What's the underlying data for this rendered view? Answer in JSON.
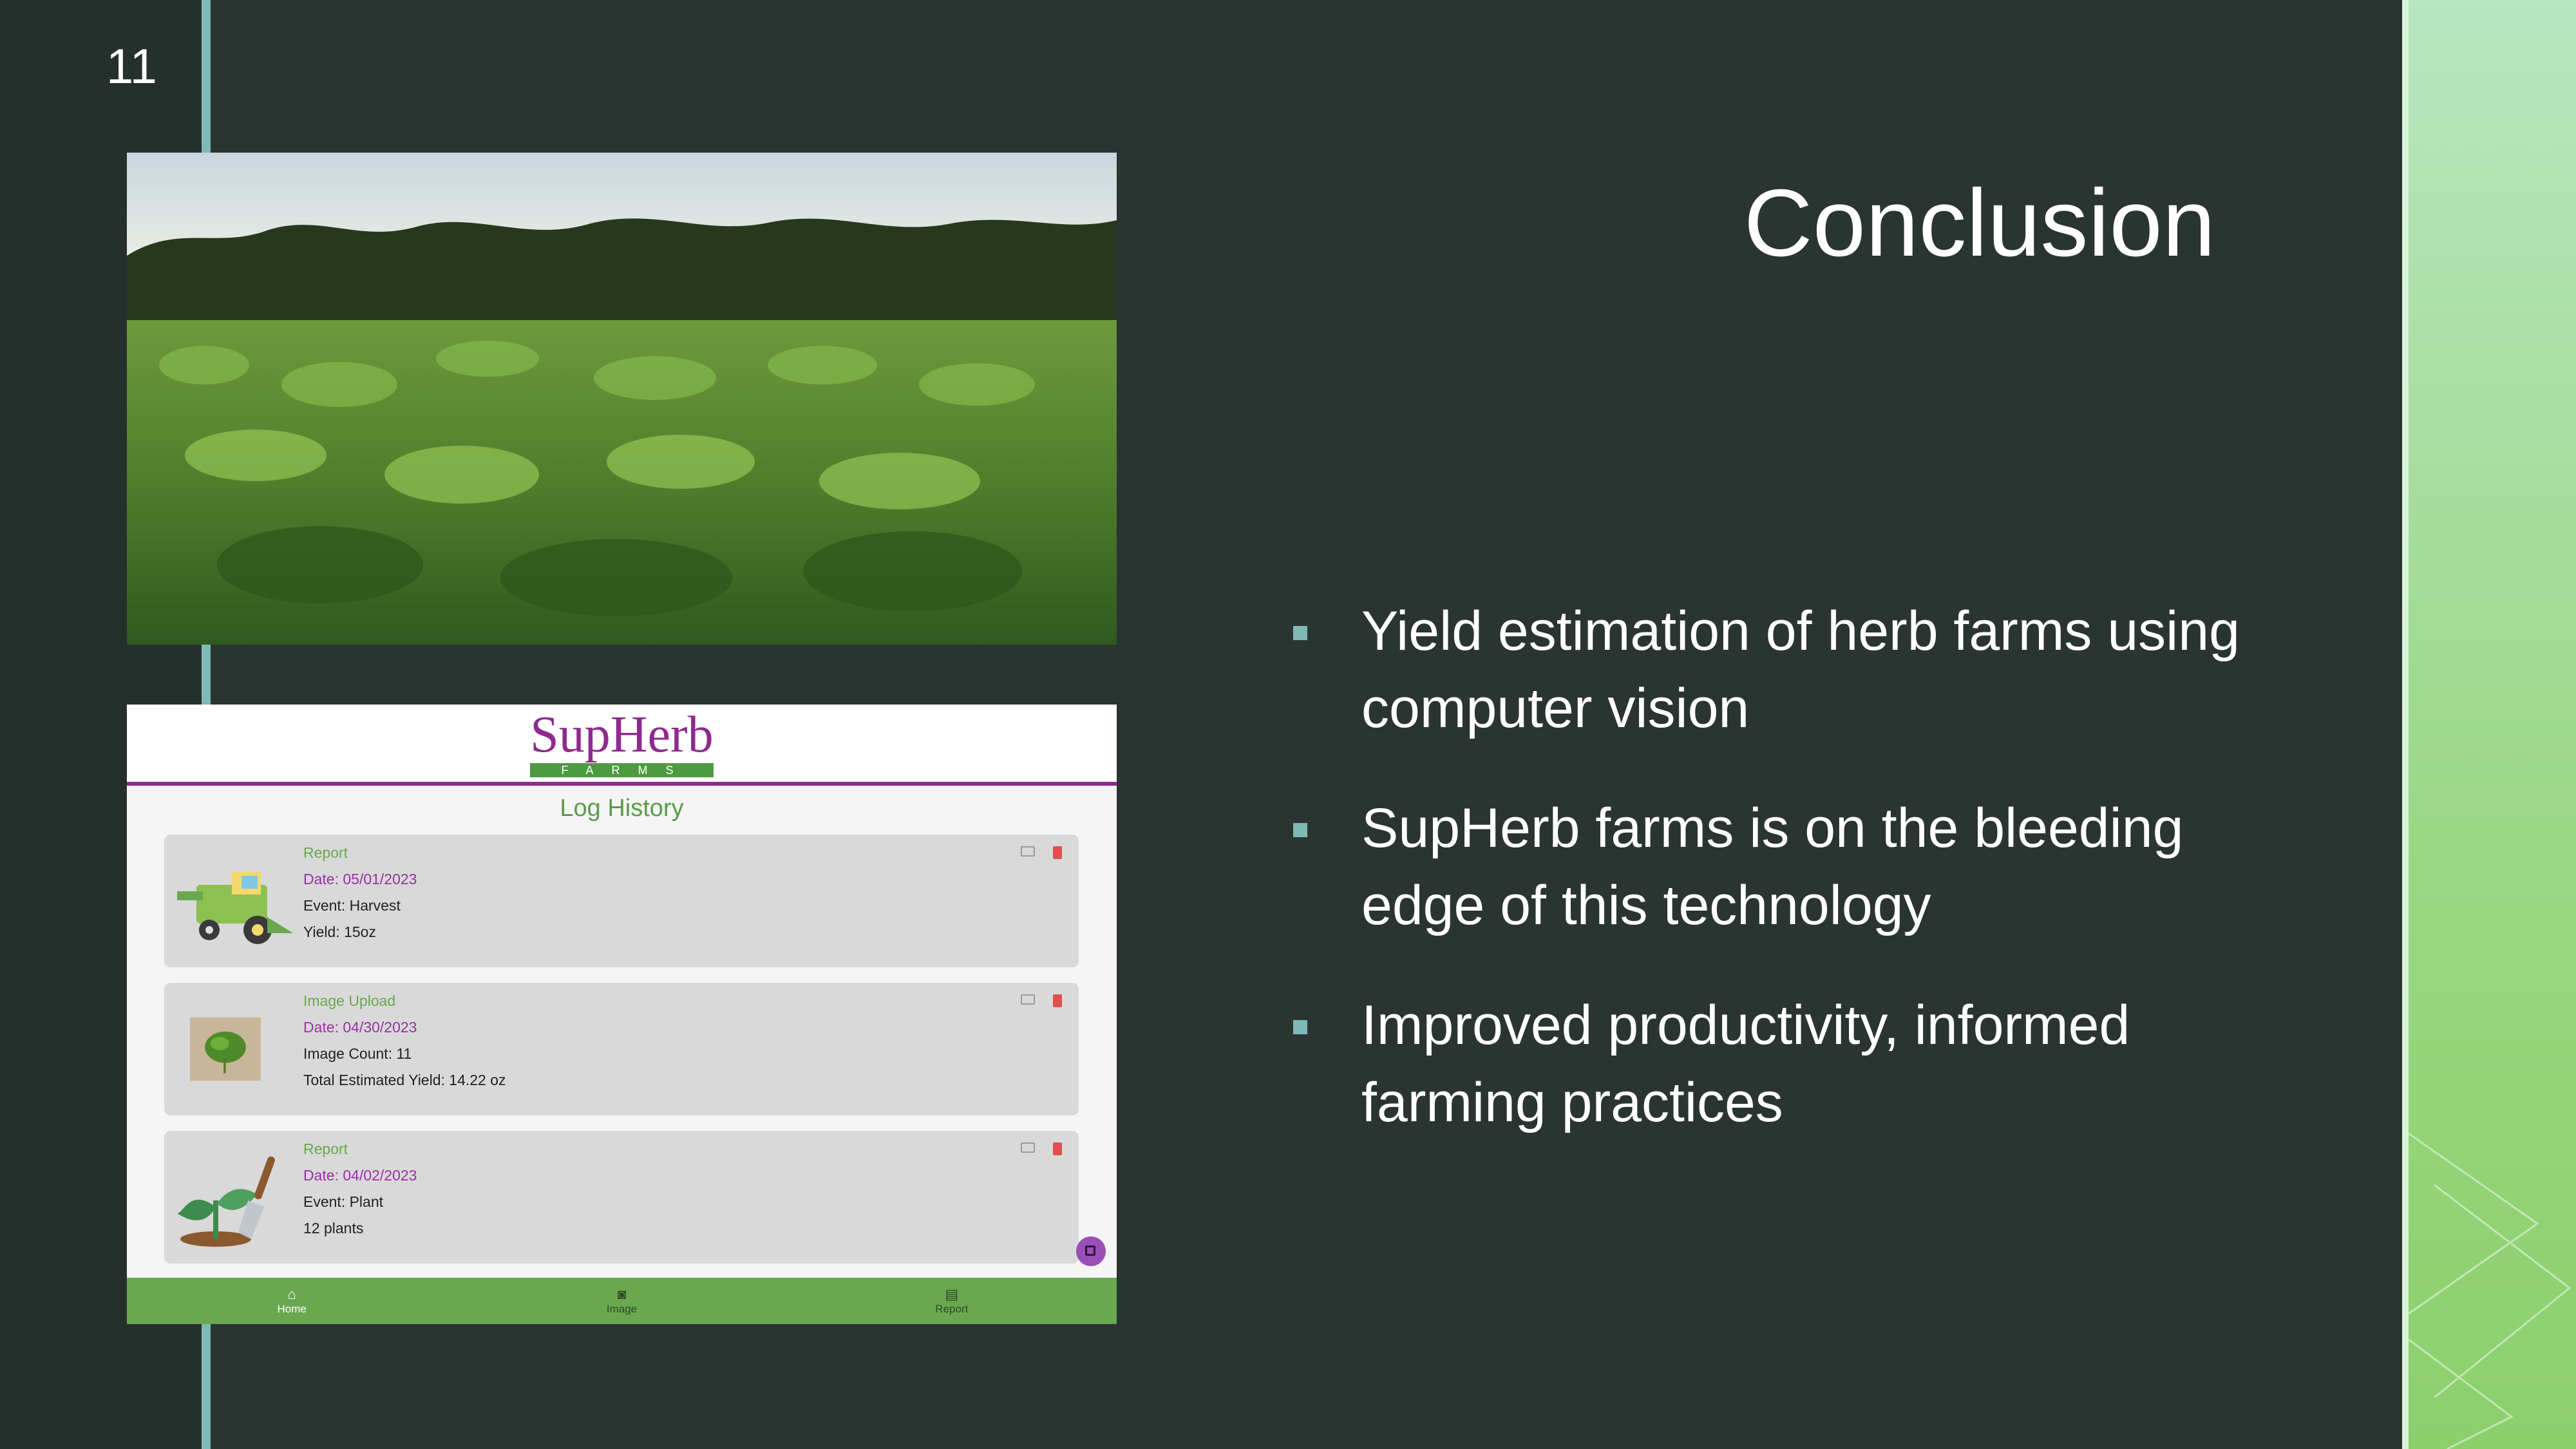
{
  "slide": {
    "number": "11",
    "title": "Conclusion",
    "bullets": [
      "Yield estimation of herb farms using computer vision",
      "SupHerb farms is on the bleeding edge of this technology",
      "Improved productivity, informed farming practices"
    ]
  },
  "app": {
    "logo_text": "SupHerb",
    "logo_sub": "FARMS",
    "title": "Log History",
    "logs": [
      {
        "kind": "Report",
        "date": "Date: 05/01/2023",
        "line1": "Event: Harvest",
        "line2": "Yield: 15oz"
      },
      {
        "kind": "Image Upload",
        "date": "Date: 04/30/2023",
        "line1": "Image Count: 11",
        "line2": "Total Estimated Yield: 14.22 oz"
      },
      {
        "kind": "Report",
        "date": "Date: 04/02/2023",
        "line1": "Event: Plant",
        "line2": "12 plants"
      }
    ],
    "nav": [
      {
        "label": "Home",
        "icon": "home-icon"
      },
      {
        "label": "Image",
        "icon": "camera-icon"
      },
      {
        "label": "Report",
        "icon": "report-icon"
      }
    ]
  },
  "colors": {
    "background": "#2a3532",
    "accent": "#7fb9b6",
    "app_green": "#6aa84f",
    "app_purple": "#8e2a8e"
  }
}
